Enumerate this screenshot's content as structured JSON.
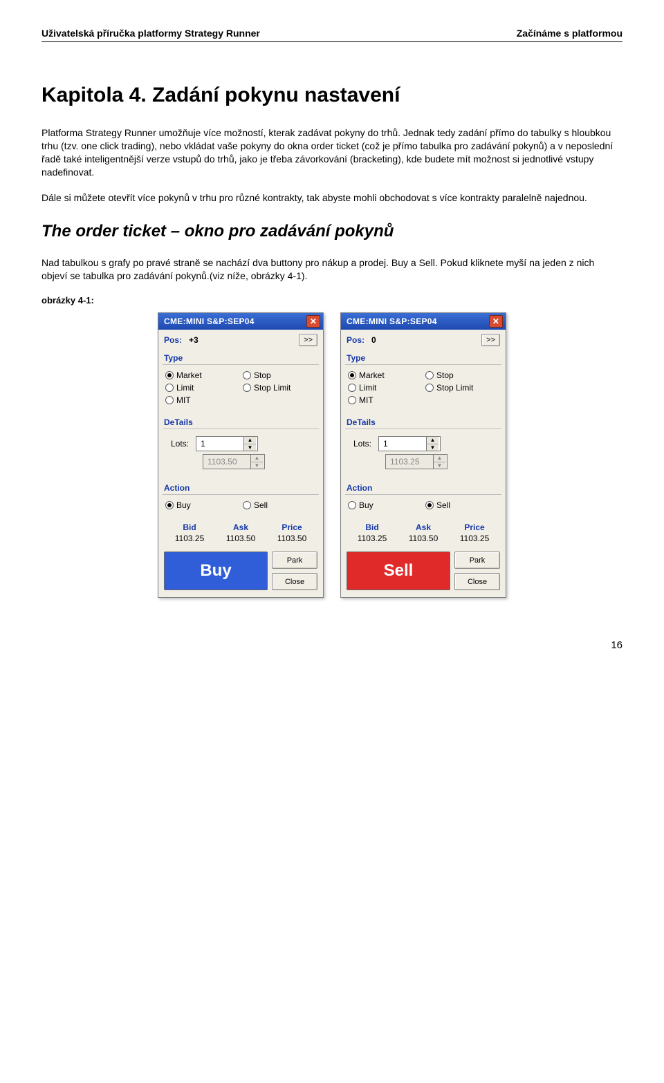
{
  "header": {
    "left": "Uživatelská příručka platformy Strategy Runner",
    "right": "Začínáme s platformou"
  },
  "chapter_title": "Kapitola 4. Zadání pokynu nastavení",
  "para1": "Platforma Strategy Runner umožňuje více možností, kterak zadávat pokyny do trhů. Jednak tedy zadání přímo do tabulky s hloubkou trhu (tzv. one click trading), nebo vkládat vaše pokyny do okna order ticket (což je přímo tabulka pro zadávání pokynů) a v neposlední řadě také inteligentnější verze vstupů do trhů, jako je třeba závorkování (bracketing), kde budete mít možnost si jednotlivé vstupy nadefinovat.",
  "para2": "Dále si můžete otevřít více pokynů v trhu pro různé kontrakty, tak abyste mohli obchodovat s více kontrakty paralelně najednou.",
  "section_title": "The order ticket – okno pro zadávání pokynů",
  "para3": "Nad tabulkou s grafy po pravé straně se nachází dva buttony pro nákup a prodej. Buy a Sell. Pokud kliknete myší na jeden z nich objeví se tabulka pro zadávání pokynů.(viz níže, obrázky 4-1).",
  "figure_label": "obrázky 4-1:",
  "page_number": "16",
  "colors": {
    "titlebar": "#2c57c4",
    "buy_bg": "#2f5ed8",
    "sell_bg": "#e02a2a",
    "label_blue": "#1538a8",
    "panel_bg": "#f1eee6"
  },
  "common": {
    "pos_label": "Pos:",
    "expand_btn": ">>",
    "type_heading": "Type",
    "details_heading": "DeTails",
    "action_heading": "Action",
    "lots_label": "Lots:",
    "bid_h": "Bid",
    "ask_h": "Ask",
    "price_h": "Price",
    "park_btn": "Park",
    "close_btn": "Close",
    "type_options": {
      "market": "Market",
      "stop": "Stop",
      "limit": "Limit",
      "stoplimit": "Stop Limit",
      "mit": "MIT"
    },
    "action_options": {
      "buy": "Buy",
      "sell": "Sell"
    }
  },
  "tickets": [
    {
      "title": "CME:MINI S&P:SEP04",
      "pos": "+3",
      "type_selected": "market",
      "lots": "1",
      "limit_price": "1103.50",
      "action_selected": "buy",
      "bid": "1103.25",
      "ask": "1103.50",
      "price": "1103.50",
      "big_label": "Buy",
      "big_color": "#2f5ed8"
    },
    {
      "title": "CME:MINI S&P:SEP04",
      "pos": "0",
      "type_selected": "market",
      "lots": "1",
      "limit_price": "1103.25",
      "action_selected": "sell",
      "bid": "1103.25",
      "ask": "1103.50",
      "price": "1103.25",
      "big_label": "Sell",
      "big_color": "#e02a2a"
    }
  ]
}
